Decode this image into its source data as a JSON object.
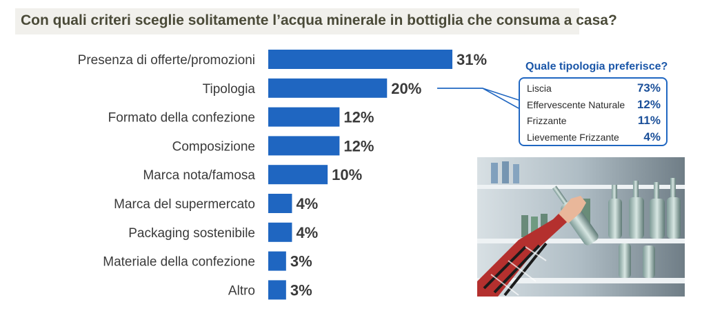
{
  "title": "Con quali criteri sceglie solitamente l’acqua minerale in bottiglia che consuma a casa?",
  "chart_data": [
    {
      "type": "bar",
      "orientation": "horizontal",
      "categories": [
        "Presenza di offerte/promozioni",
        "Tipologia",
        "Formato della confezione",
        "Composizione",
        "Marca nota/famosa",
        "Marca del supermercato",
        "Packaging sostenibile",
        "Materiale della confezione",
        "Altro"
      ],
      "values": [
        31,
        20,
        12,
        12,
        10,
        4,
        4,
        3,
        3
      ],
      "value_labels": [
        "31%",
        "20%",
        "12%",
        "12%",
        "10%",
        "4%",
        "4%",
        "3%",
        "3%"
      ],
      "unit": "%",
      "grid": false,
      "bar_color": "#1f66c1"
    },
    {
      "type": "table",
      "title": "Quale tipologia preferisce?",
      "rows": [
        {
          "label": "Liscia",
          "value": 73,
          "display": "73%"
        },
        {
          "label": "Effervescente Naturale",
          "value": 12,
          "display": "12%"
        },
        {
          "label": "Frizzante",
          "value": 11,
          "display": "11%"
        },
        {
          "label": "Lievemente Frizzante",
          "value": 4,
          "display": "4%"
        }
      ]
    }
  ],
  "photo": {
    "icon": "supermarket-water-bottles-photo",
    "colors": {
      "shelf": "#e8eef2",
      "bottle": "#9fb9b5",
      "shirt_red": "#b4302e"
    }
  }
}
